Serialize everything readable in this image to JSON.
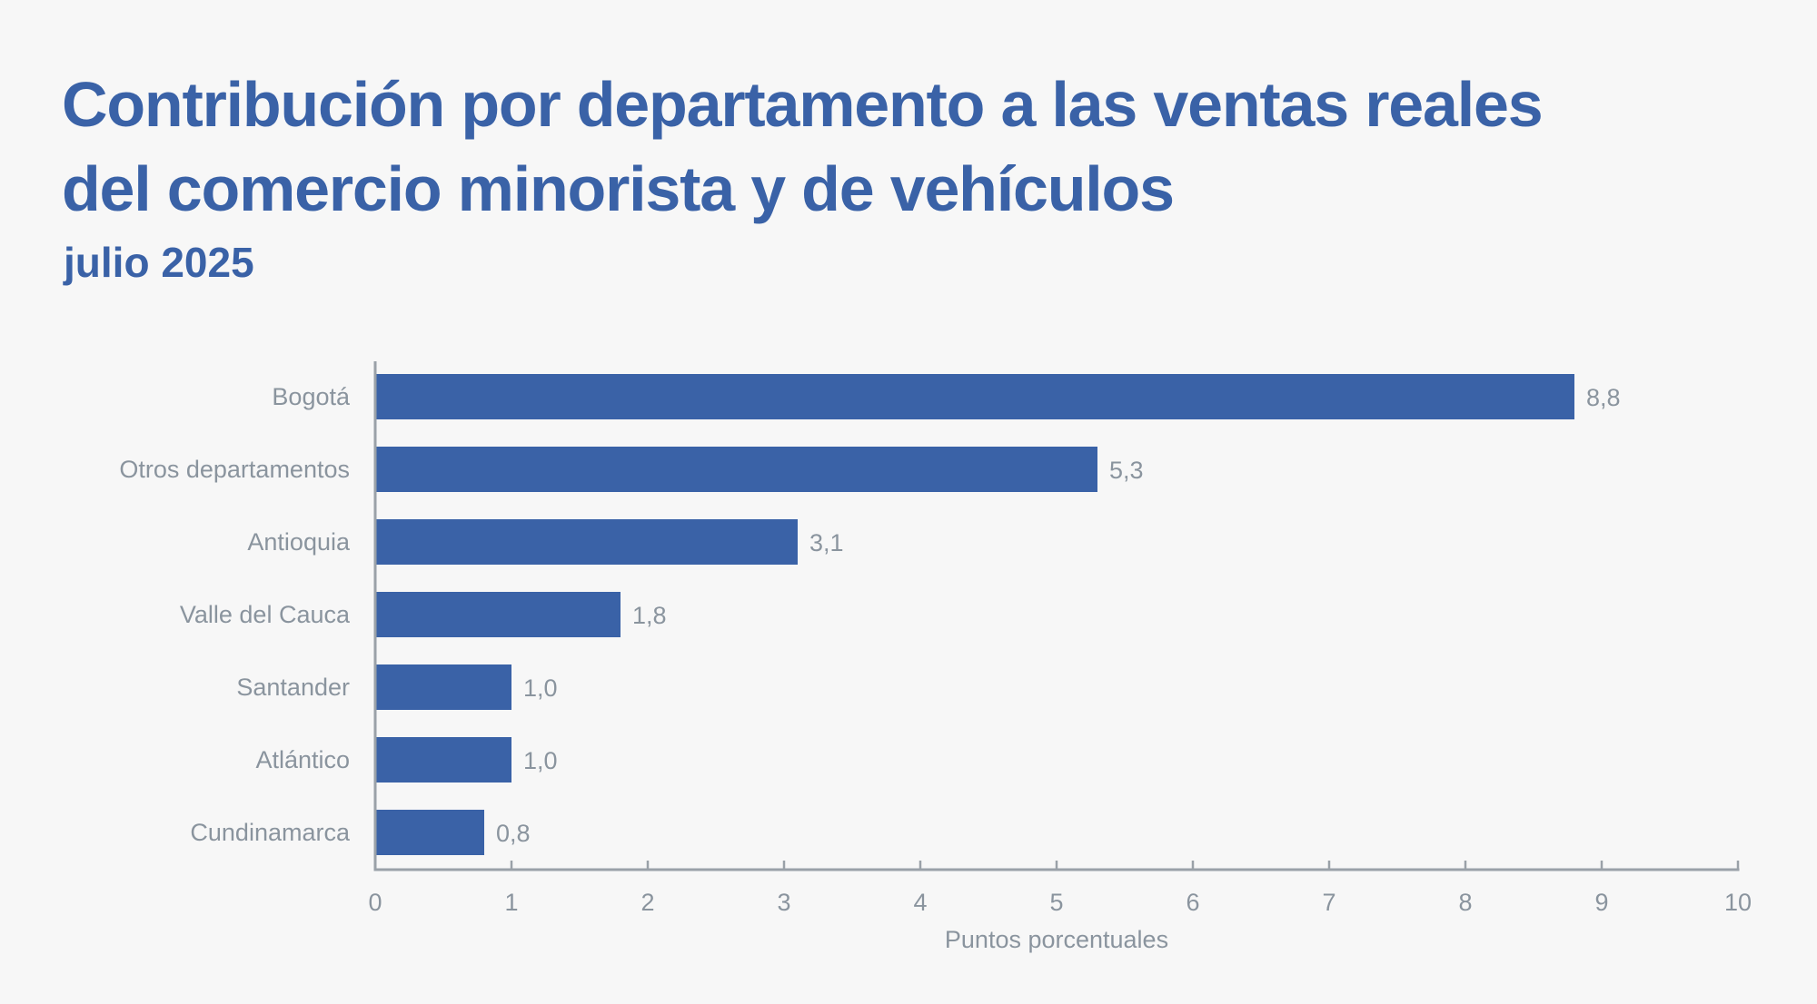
{
  "header": {
    "title_line1": "Contribución por departamento a las ventas reales",
    "title_line2": "del comercio minorista y de vehículos",
    "subtitle": "julio 2025"
  },
  "colors": {
    "bar": "#3a62a7",
    "title": "#3a62a7",
    "text": "#8a949e",
    "axis": "#9aa1a8",
    "background": "#f7f7f7"
  },
  "chart_data": {
    "type": "bar",
    "orientation": "horizontal",
    "title": "Contribución por departamento a las ventas reales del comercio minorista y de vehículos",
    "subtitle": "julio 2025",
    "categories": [
      "Bogotá",
      "Otros departamentos",
      "Antioquia",
      "Valle del Cauca",
      "Santander",
      "Atlántico",
      "Cundinamarca"
    ],
    "values": [
      8.8,
      5.3,
      3.1,
      1.8,
      1.0,
      1.0,
      0.8
    ],
    "value_labels": [
      "8,8",
      "5,3",
      "3,1",
      "1,8",
      "1,0",
      "1,0",
      "0,8"
    ],
    "xlabel": "Puntos porcentuales",
    "ylabel": "",
    "xlim": [
      0,
      10
    ],
    "xticks": [
      0,
      1,
      2,
      3,
      4,
      5,
      6,
      7,
      8,
      9,
      10
    ],
    "xtick_labels": [
      "0",
      "1",
      "2",
      "3",
      "4",
      "5",
      "6",
      "7",
      "8",
      "9",
      "10"
    ],
    "grid": false,
    "legend": "none"
  }
}
